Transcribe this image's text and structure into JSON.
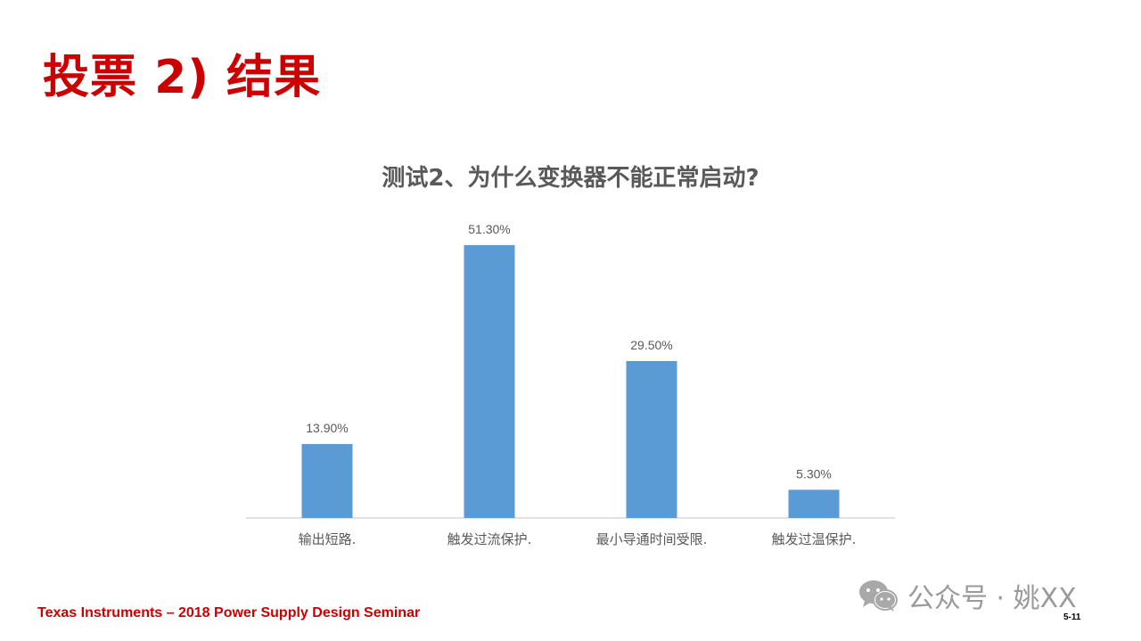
{
  "slide": {
    "title": "投票 2) 结果",
    "footer": "Texas Instruments – 2018 Power Supply Design Seminar",
    "page_number": "5-11",
    "watermark_text": "公众号 · 姚XX",
    "watermark_icon": "wechat-icon"
  },
  "colors": {
    "title": "#cc0000",
    "bar": "#5b9bd5",
    "axis": "#d9d9d9",
    "chart_text": "#595959"
  },
  "chart_data": {
    "type": "bar",
    "title": "测试2、为什么变换器不能正常启动?",
    "categories": [
      "输出短路.",
      "触发过流保护.",
      "最小导通时间受限.",
      "触发过温保护."
    ],
    "values": [
      13.9,
      51.3,
      29.5,
      5.3
    ],
    "value_labels": [
      "13.90%",
      "51.30%",
      "29.50%",
      "5.30%"
    ],
    "ylim": [
      0,
      60
    ],
    "xlabel": "",
    "ylabel": "",
    "grid": false,
    "legend": "none"
  }
}
